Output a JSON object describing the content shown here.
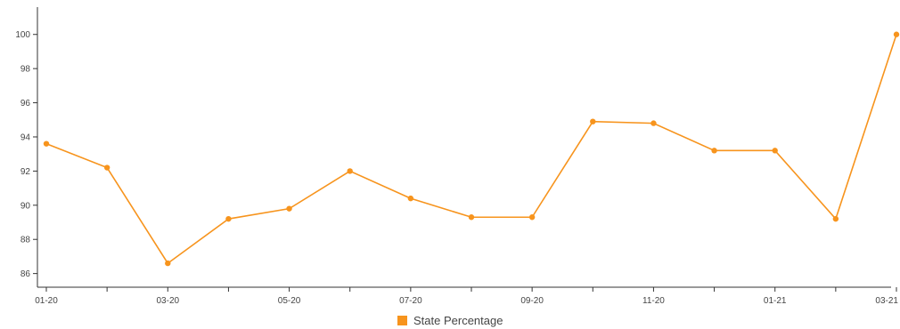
{
  "chart_data": {
    "type": "line",
    "x": [
      "01-20",
      "02-20",
      "03-20",
      "04-20",
      "05-20",
      "06-20",
      "07-20",
      "08-20",
      "09-20",
      "10-20",
      "11-20",
      "12-20",
      "01-21",
      "02-21",
      "03-21"
    ],
    "x_tick_labels": [
      "01-20",
      "",
      "03-20",
      "",
      "05-20",
      "",
      "07-20",
      "",
      "09-20",
      "",
      "11-20",
      "",
      "01-21",
      "",
      "03-21"
    ],
    "series": [
      {
        "name": "State Percentage",
        "values": [
          93.6,
          92.2,
          86.6,
          89.2,
          89.8,
          92.0,
          90.4,
          89.3,
          89.3,
          94.9,
          94.8,
          93.2,
          93.2,
          89.2,
          100.0
        ],
        "color": "#f7941d"
      }
    ],
    "ylim": [
      85.2,
      101.6
    ],
    "y_ticks": [
      86,
      88,
      90,
      92,
      94,
      96,
      98,
      100
    ],
    "grid": false,
    "legend_position": "bottom-center"
  }
}
